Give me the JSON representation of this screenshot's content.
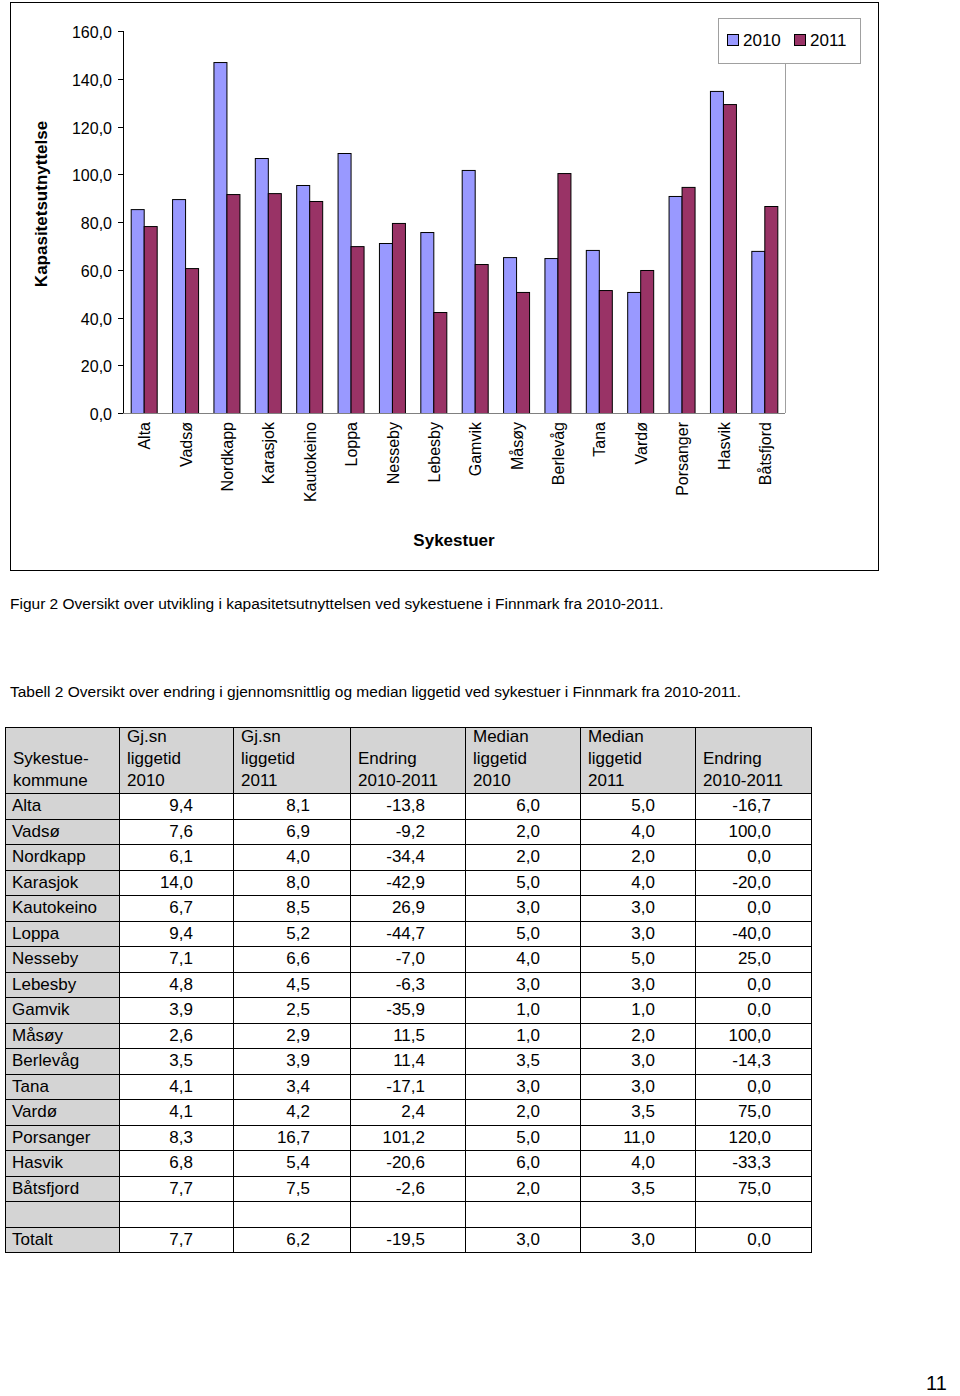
{
  "chart_data": {
    "type": "bar",
    "y_label": "Kapasitetsutnyttelse",
    "x_label": "Sykestuer",
    "categories": [
      "Alta",
      "Vadsø",
      "Nordkapp",
      "Karasjok",
      "Kautokeino",
      "Loppa",
      "Nesseby",
      "Lebesby",
      "Gamvik",
      "Måsøy",
      "Berlevåg",
      "Tana",
      "Vardø",
      "Porsanger",
      "Hasvik",
      "Båtsfjord"
    ],
    "series": [
      {
        "name": "2010",
        "color": "#9999ff",
        "values": [
          85.4,
          89.6,
          147.0,
          106.8,
          95.5,
          108.9,
          71.2,
          75.8,
          101.8,
          65.3,
          64.9,
          68.3,
          50.7,
          90.9,
          134.9,
          67.9
        ]
      },
      {
        "name": "2011",
        "color": "#993366",
        "values": [
          78.3,
          60.7,
          91.7,
          92.1,
          88.8,
          69.9,
          79.6,
          42.3,
          62.4,
          50.7,
          100.5,
          51.5,
          59.9,
          94.7,
          129.4,
          86.7
        ]
      }
    ],
    "ylim": [
      0,
      160
    ],
    "yticks": [
      {
        "value": 0,
        "label": "0,0"
      },
      {
        "value": 20,
        "label": "20,0"
      },
      {
        "value": 40,
        "label": "40,0"
      },
      {
        "value": 60,
        "label": "60,0"
      },
      {
        "value": 80,
        "label": "80,0"
      },
      {
        "value": 100,
        "label": "100,0"
      },
      {
        "value": 120,
        "label": "120,0"
      },
      {
        "value": 140,
        "label": "140,0"
      },
      {
        "value": 160,
        "label": "160,0"
      }
    ],
    "grid": false,
    "legend": "top-right"
  },
  "figure_caption": "Figur 2 Oversikt over utvikling i kapasitetsutnyttelsen ved sykestuene i Finnmark fra 2010-2011.",
  "table_caption": "Tabell 2 Oversikt over endring i gjennomsnittlig og median liggetid ved sykestuer i Finnmark fra 2010-2011.",
  "table": {
    "header": [
      [
        "Sykestue-",
        "kommune"
      ],
      [
        "Gj.sn",
        "liggetid",
        "2010"
      ],
      [
        "Gj.sn",
        "liggetid",
        "2011"
      ],
      [
        "Endring",
        "2010-2011"
      ],
      [
        "Median",
        "liggetid",
        "2010"
      ],
      [
        "Median",
        "liggetid",
        "2011"
      ],
      [
        "Endring",
        "2010-2011"
      ]
    ],
    "rows": [
      [
        "Alta",
        "9,4",
        "8,1",
        "-13,8",
        "6,0",
        "5,0",
        "-16,7"
      ],
      [
        "Vadsø",
        "7,6",
        "6,9",
        "-9,2",
        "2,0",
        "4,0",
        "100,0"
      ],
      [
        "Nordkapp",
        "6,1",
        "4,0",
        "-34,4",
        "2,0",
        "2,0",
        "0,0"
      ],
      [
        "Karasjok",
        "14,0",
        "8,0",
        "-42,9",
        "5,0",
        "4,0",
        "-20,0"
      ],
      [
        "Kautokeino",
        "6,7",
        "8,5",
        "26,9",
        "3,0",
        "3,0",
        "0,0"
      ],
      [
        "Loppa",
        "9,4",
        "5,2",
        "-44,7",
        "5,0",
        "3,0",
        "-40,0"
      ],
      [
        "Nesseby",
        "7,1",
        "6,6",
        "-7,0",
        "4,0",
        "5,0",
        "25,0"
      ],
      [
        "Lebesby",
        "4,8",
        "4,5",
        "-6,3",
        "3,0",
        "3,0",
        "0,0"
      ],
      [
        "Gamvik",
        "3,9",
        "2,5",
        "-35,9",
        "1,0",
        "1,0",
        "0,0"
      ],
      [
        "Måsøy",
        "2,6",
        "2,9",
        "11,5",
        "1,0",
        "2,0",
        "100,0"
      ],
      [
        "Berlevåg",
        "3,5",
        "3,9",
        "11,4",
        "3,5",
        "3,0",
        "-14,3"
      ],
      [
        "Tana",
        "4,1",
        "3,4",
        "-17,1",
        "3,0",
        "3,0",
        "0,0"
      ],
      [
        "Vardø",
        "4,1",
        "4,2",
        "2,4",
        "2,0",
        "3,5",
        "75,0"
      ],
      [
        "Porsanger",
        "8,3",
        "16,7",
        "101,2",
        "5,0",
        "11,0",
        "120,0"
      ],
      [
        "Hasvik",
        "6,8",
        "5,4",
        "-20,6",
        "6,0",
        "4,0",
        "-33,3"
      ],
      [
        "Båtsfjord",
        "7,7",
        "7,5",
        "-2,6",
        "2,0",
        "3,5",
        "75,0"
      ]
    ],
    "total": [
      "Totalt",
      "7,7",
      "6,2",
      "-19,5",
      "3,0",
      "3,0",
      "0,0"
    ]
  },
  "page_number": "11"
}
